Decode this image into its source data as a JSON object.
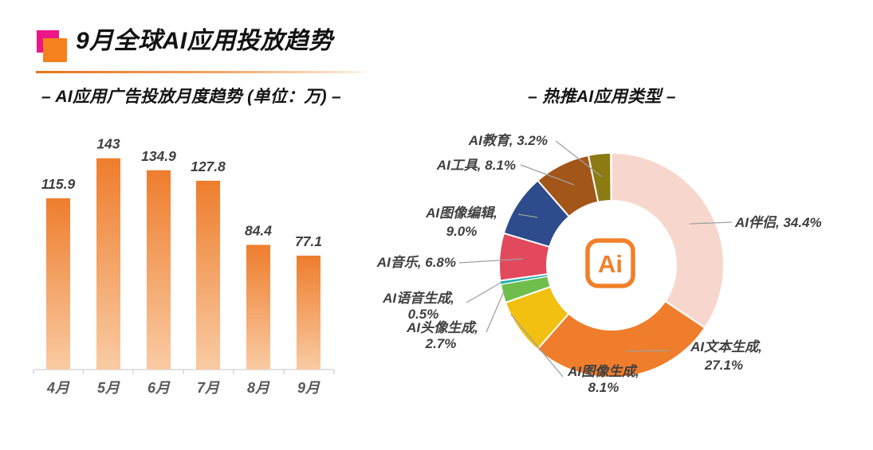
{
  "header": {
    "title": "9月全球AI应用投放趋势"
  },
  "left_chart": {
    "subtitle": "– AI应用广告投放月度趋势 (单位：万) –"
  },
  "right_chart": {
    "subtitle": "– 热推AI应用类型 –",
    "center_logo_text": "Ai"
  },
  "colors": {
    "accent_orange": "#F5821E",
    "brand_pink": "#EB1787",
    "axis_gray": "#D9D9D9",
    "leader_gray": "#A0A0A0",
    "label_gray": "#3F3F3F"
  },
  "chart_data": [
    {
      "type": "bar",
      "title": "AI应用广告投放月度趋势",
      "unit": "万",
      "categories": [
        "4月",
        "5月",
        "6月",
        "7月",
        "8月",
        "9月"
      ],
      "values": [
        115.9,
        143,
        134.9,
        127.8,
        84.4,
        77.1
      ],
      "ylim": [
        0,
        160
      ],
      "grid": false,
      "bar_color_top": "#EE7D2D",
      "bar_color_bottom": "#F9CBA3"
    },
    {
      "type": "pie",
      "title": "热推AI应用类型",
      "donut": true,
      "start_angle": "top",
      "direction": "clockwise",
      "slices": [
        {
          "label": "AI伴侣",
          "value": 34.4,
          "display": "34.4%",
          "color": "#F7D7CD"
        },
        {
          "label": "AI文本生成",
          "value": 27.1,
          "display": "27.1%",
          "color": "#EF7D2B"
        },
        {
          "label": "AI图像生成",
          "value": 8.1,
          "display": "8.1%",
          "color": "#F2C011"
        },
        {
          "label": "AI头像生成",
          "value": 2.7,
          "display": "2.7%",
          "color": "#6FBE4C"
        },
        {
          "label": "AI语音生成",
          "value": 0.5,
          "display": "0.5%",
          "color": "#20ADAD"
        },
        {
          "label": "AI音乐",
          "value": 6.8,
          "display": "6.8%",
          "color": "#E2495C"
        },
        {
          "label": "AI图像编辑",
          "value": 9.0,
          "display": "9.0%",
          "color": "#2E4C8C"
        },
        {
          "label": "AI工具",
          "value": 8.1,
          "display": "8.1%",
          "color": "#A3561A"
        },
        {
          "label": "AI教育",
          "value": 3.2,
          "display": "3.2%",
          "color": "#8C7A12"
        }
      ]
    }
  ]
}
